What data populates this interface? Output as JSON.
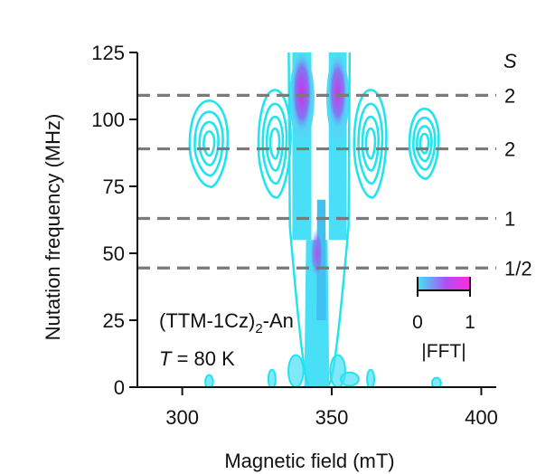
{
  "chart_data": {
    "type": "heatmap",
    "xlabel": "Magnetic field (mT)",
    "ylabel": "Nutation frequency (MHz)",
    "xlim": [
      285,
      405
    ],
    "ylim": [
      0,
      125
    ],
    "xticks": [
      300,
      350,
      400
    ],
    "yticks": [
      0,
      25,
      50,
      75,
      100,
      125
    ],
    "colormap": [
      "#3fe6f5",
      "#b24cf2",
      "#ff2be0"
    ],
    "contour_color": "#22e4ee",
    "colorbar": {
      "label": "|FFT|",
      "tick_labels": [
        "0",
        "1"
      ],
      "ticks": [
        0,
        1
      ]
    },
    "spin_header": "S",
    "reference_lines": [
      {
        "y": 109,
        "label": "2"
      },
      {
        "y": 89,
        "label": "2"
      },
      {
        "y": 63,
        "label": "1"
      },
      {
        "y": 44.5,
        "label": "1/2"
      }
    ],
    "annotation": {
      "compound_main": "(TTM-1Cz)",
      "compound_sub": "2",
      "compound_tail": "-An",
      "temp_var": "T",
      "temp_value": " = 80 K"
    },
    "features": [
      {
        "x": 340,
        "y": 110,
        "intensity": 1.0,
        "kind": "column-peak"
      },
      {
        "x": 352,
        "y": 110,
        "intensity": 0.9,
        "kind": "column-peak"
      },
      {
        "x": 345,
        "y": 50,
        "intensity": 0.55,
        "kind": "column-peak"
      },
      {
        "x": 309,
        "y": 91,
        "intensity": 0.2,
        "kind": "island"
      },
      {
        "x": 331,
        "y": 91,
        "intensity": 0.25,
        "kind": "island"
      },
      {
        "x": 363,
        "y": 91,
        "intensity": 0.25,
        "kind": "island"
      },
      {
        "x": 381,
        "y": 91,
        "intensity": 0.2,
        "kind": "island"
      }
    ]
  }
}
